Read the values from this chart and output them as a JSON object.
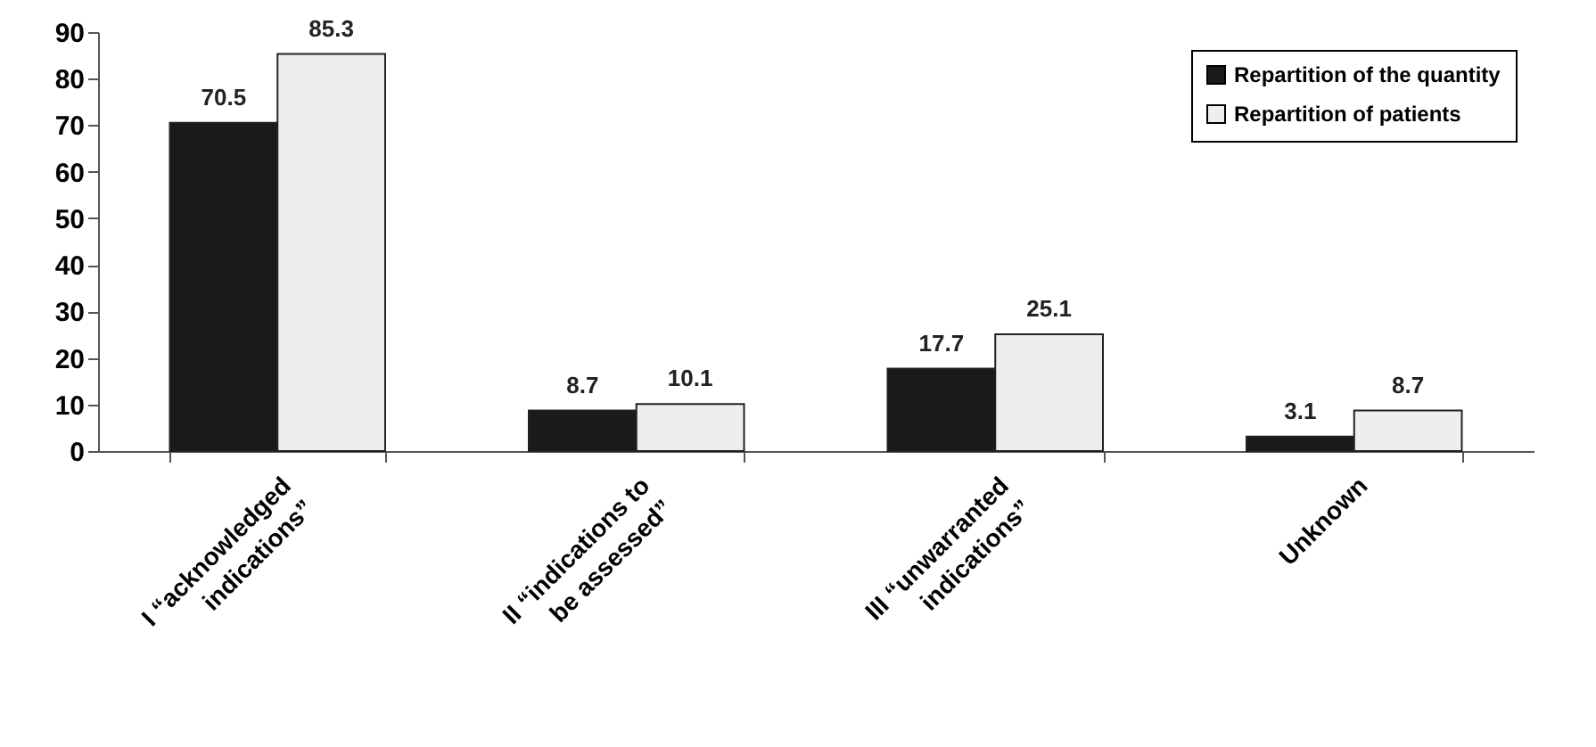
{
  "chart_data": {
    "type": "bar",
    "categories": [
      "I “acknowledged\nindications”",
      "II “indications to\nbe assessed”",
      "III “unwarranted\nindications”",
      "Unknown"
    ],
    "series": [
      {
        "name": "Repartition of the quantity",
        "color": "#1a1a1a",
        "values": [
          70.5,
          8.7,
          17.7,
          3.1
        ]
      },
      {
        "name": "Repartition of patients",
        "color": "#eeeeee",
        "values": [
          85.3,
          10.1,
          25.1,
          8.7
        ]
      }
    ],
    "ylim": [
      0,
      90
    ],
    "yticks": [
      0,
      10,
      20,
      30,
      40,
      50,
      60,
      70,
      80,
      90
    ],
    "data_labels": true,
    "legend": "top right",
    "grid": false
  }
}
